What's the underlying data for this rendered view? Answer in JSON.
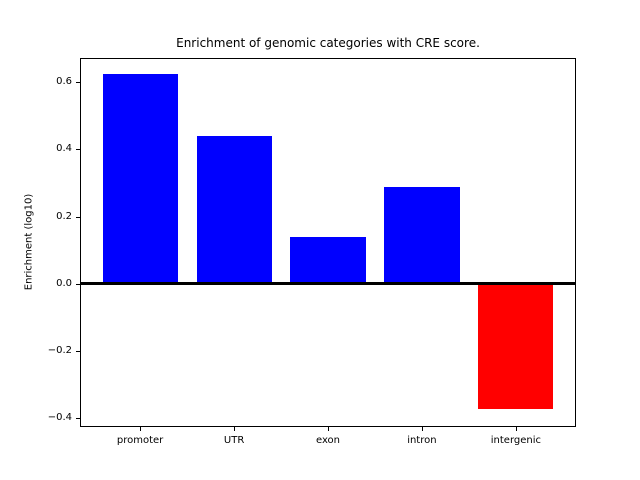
{
  "figure": {
    "background": "#ffffff"
  },
  "chart_data": {
    "type": "bar",
    "title": "Enrichment of genomic categories with CRE score.",
    "xlabel": "",
    "ylabel": "Enrichment (log10)",
    "categories": [
      "promoter",
      "UTR",
      "exon",
      "intron",
      "intergenic"
    ],
    "values": [
      0.625,
      0.44,
      0.138,
      0.287,
      -0.373
    ],
    "bar_colors": [
      "#0000ff",
      "#0000ff",
      "#0000ff",
      "#0000ff",
      "#ff0000"
    ],
    "positive_color": "#0000ff",
    "negative_color": "#ff0000",
    "yticks": [
      0.6,
      0.4,
      0.2,
      0.0,
      -0.2,
      -0.4
    ],
    "ytick_labels": [
      "0.6",
      "0.4",
      "0.2",
      "0.0",
      "−0.2",
      "−0.4"
    ],
    "ylim": [
      -0.427,
      0.672
    ],
    "xlim": [
      -0.64,
      4.64
    ],
    "bar_width": 0.8,
    "grid": false,
    "legend": false,
    "zero_line": true
  }
}
